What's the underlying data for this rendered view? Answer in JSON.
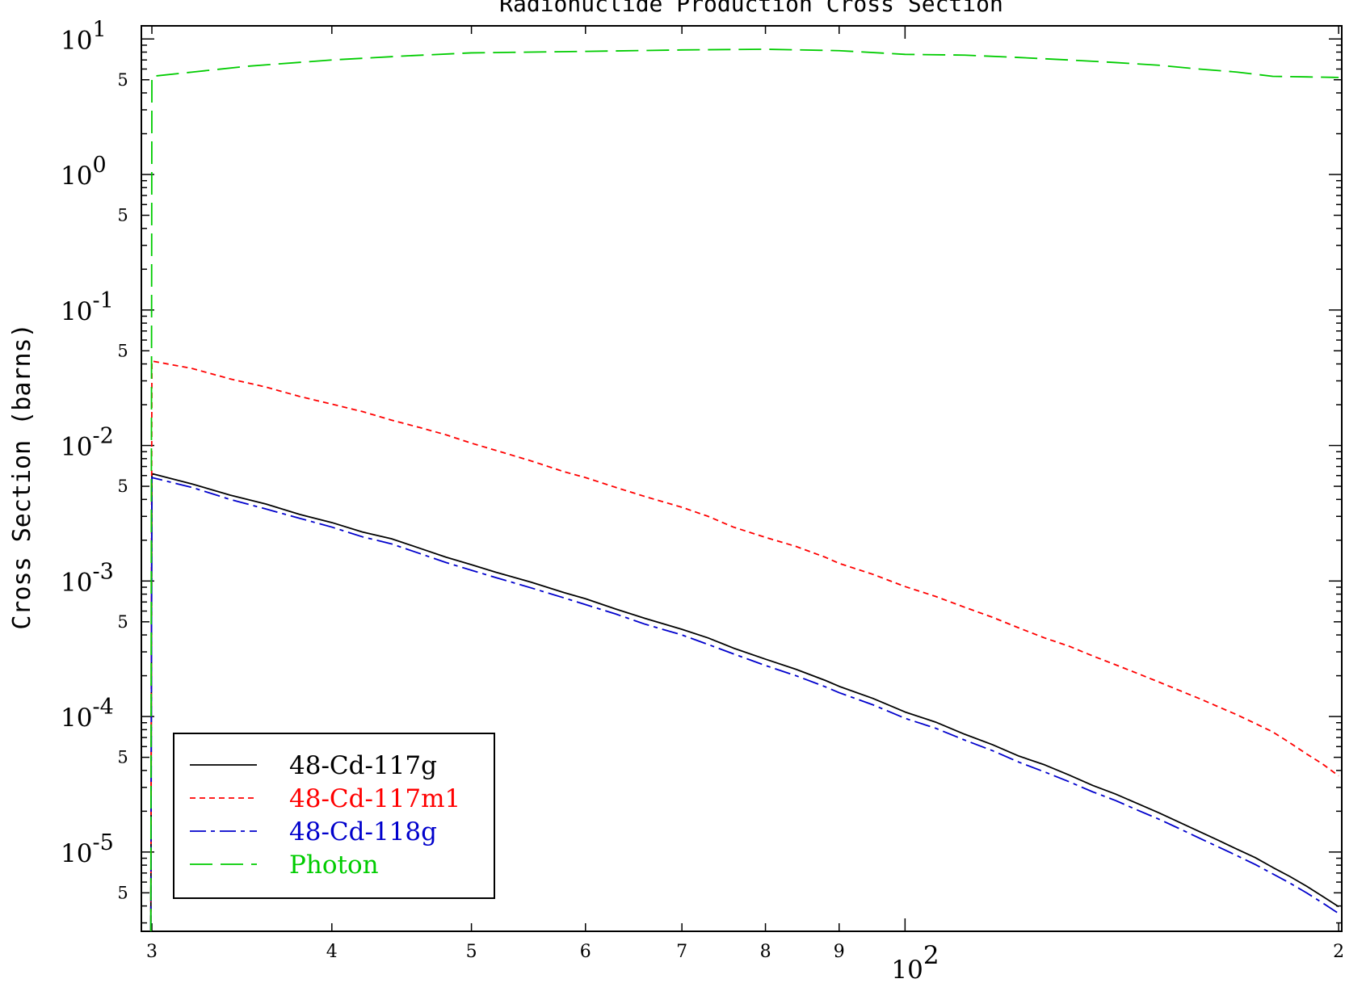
{
  "chart_data": {
    "type": "line",
    "title": "Radionuclide Production Cross Section",
    "ylabel": "Cross Section (barns)",
    "xlabel": "",
    "x_scale": "log",
    "y_scale": "log",
    "xlim": [
      29.5,
      201
    ],
    "ylim": [
      2.6e-06,
      12.5
    ],
    "grid": false,
    "legend_position": "bottom-left",
    "x_ticks": [
      {
        "value": 30,
        "label": "3"
      },
      {
        "value": 40,
        "label": "4"
      },
      {
        "value": 50,
        "label": "5"
      },
      {
        "value": 60,
        "label": "6"
      },
      {
        "value": 70,
        "label": "7"
      },
      {
        "value": 80,
        "label": "8"
      },
      {
        "value": 90,
        "label": "9"
      },
      {
        "value": 200,
        "label": "2"
      }
    ],
    "x_decade_labels": [
      {
        "value": 100,
        "base": "10",
        "exp": "2"
      }
    ],
    "y_decade_labels": [
      {
        "value": 10,
        "base": "10",
        "exp": "1"
      },
      {
        "value": 1,
        "base": "10",
        "exp": "0"
      },
      {
        "value": 0.1,
        "base": "10",
        "exp": "-1"
      },
      {
        "value": 0.01,
        "base": "10",
        "exp": "-2"
      },
      {
        "value": 0.001,
        "base": "10",
        "exp": "-3"
      },
      {
        "value": 0.0001,
        "base": "10",
        "exp": "-4"
      },
      {
        "value": 1e-05,
        "base": "10",
        "exp": "-5"
      }
    ],
    "y_minor_labels": [
      {
        "value": 5,
        "label": "5"
      },
      {
        "value": 0.5,
        "label": "5"
      },
      {
        "value": 0.05,
        "label": "5"
      },
      {
        "value": 0.005,
        "label": "5"
      },
      {
        "value": 0.0005,
        "label": "5"
      },
      {
        "value": 5e-05,
        "label": "5"
      },
      {
        "value": 5e-06,
        "label": "5"
      }
    ],
    "series": [
      {
        "name": "48-Cd-117g",
        "color": "#000000",
        "dash": "solid",
        "points": [
          [
            29.95,
            2.6e-06
          ],
          [
            30,
            0.0062
          ],
          [
            32,
            0.0052
          ],
          [
            34,
            0.0043
          ],
          [
            36,
            0.0037
          ],
          [
            38,
            0.0031
          ],
          [
            40,
            0.0027
          ],
          [
            42,
            0.0023
          ],
          [
            44,
            0.00205
          ],
          [
            46,
            0.00175
          ],
          [
            48,
            0.0015
          ],
          [
            50,
            0.00132
          ],
          [
            52,
            0.00116
          ],
          [
            55,
            0.00098
          ],
          [
            58,
            0.00082
          ],
          [
            60,
            0.00074
          ],
          [
            63,
            0.00062
          ],
          [
            66,
            0.00053
          ],
          [
            70,
            0.00044
          ],
          [
            73,
            0.00038
          ],
          [
            76,
            0.00032
          ],
          [
            80,
            0.000265
          ],
          [
            84,
            0.000223
          ],
          [
            88,
            0.000185
          ],
          [
            90,
            0.000167
          ],
          [
            95,
            0.000136
          ],
          [
            100,
            0.000108
          ],
          [
            105,
            9.1e-05
          ],
          [
            110,
            7.4e-05
          ],
          [
            115,
            6.2e-05
          ],
          [
            120,
            5.1e-05
          ],
          [
            125,
            4.4e-05
          ],
          [
            130,
            3.7e-05
          ],
          [
            135,
            3.1e-05
          ],
          [
            140,
            2.68e-05
          ],
          [
            145,
            2.28e-05
          ],
          [
            150,
            1.95e-05
          ],
          [
            155,
            1.66e-05
          ],
          [
            160,
            1.42e-05
          ],
          [
            165,
            1.22e-05
          ],
          [
            170,
            1.05e-05
          ],
          [
            175,
            9.1e-06
          ],
          [
            180,
            7.7e-06
          ],
          [
            185,
            6.6e-06
          ],
          [
            190,
            5.6e-06
          ],
          [
            195,
            4.7e-06
          ],
          [
            200,
            3.95e-06
          ]
        ]
      },
      {
        "name": "48-Cd-117m1",
        "color": "#ff0000",
        "dash": "short-dash",
        "points": [
          [
            29.95,
            2.6e-06
          ],
          [
            30,
            0.042
          ],
          [
            32,
            0.037
          ],
          [
            34,
            0.031
          ],
          [
            36,
            0.027
          ],
          [
            38,
            0.023
          ],
          [
            40,
            0.0202
          ],
          [
            42,
            0.0178
          ],
          [
            44,
            0.0154
          ],
          [
            46,
            0.0136
          ],
          [
            48,
            0.012
          ],
          [
            50,
            0.0104
          ],
          [
            52,
            0.0092
          ],
          [
            55,
            0.0077
          ],
          [
            58,
            0.0064
          ],
          [
            60,
            0.0058
          ],
          [
            63,
            0.0049
          ],
          [
            66,
            0.0042
          ],
          [
            70,
            0.0035
          ],
          [
            73,
            0.003
          ],
          [
            76,
            0.0025
          ],
          [
            80,
            0.0021
          ],
          [
            84,
            0.0018
          ],
          [
            88,
            0.0015
          ],
          [
            90,
            0.00135
          ],
          [
            95,
            0.00112
          ],
          [
            100,
            0.00091
          ],
          [
            105,
            0.00077
          ],
          [
            110,
            0.00064
          ],
          [
            115,
            0.00054
          ],
          [
            120,
            0.00045
          ],
          [
            125,
            0.00038
          ],
          [
            130,
            0.00033
          ],
          [
            135,
            0.00028
          ],
          [
            140,
            0.000241
          ],
          [
            145,
            0.000208
          ],
          [
            150,
            0.00018
          ],
          [
            155,
            0.000156
          ],
          [
            160,
            0.000136
          ],
          [
            165,
            0.000118
          ],
          [
            170,
            0.000103
          ],
          [
            175,
            8.9e-05
          ],
          [
            180,
            7.7e-05
          ],
          [
            185,
            6.4e-05
          ],
          [
            190,
            5.3e-05
          ],
          [
            195,
            4.45e-05
          ],
          [
            200,
            3.65e-05
          ]
        ]
      },
      {
        "name": "48-Cd-118g",
        "color": "#0000cc",
        "dash": "dash-dot",
        "points": [
          [
            29.95,
            2.6e-06
          ],
          [
            30,
            0.0058
          ],
          [
            32,
            0.0049
          ],
          [
            34,
            0.004
          ],
          [
            36,
            0.0034
          ],
          [
            38,
            0.0029
          ],
          [
            40,
            0.0025
          ],
          [
            42,
            0.00212
          ],
          [
            44,
            0.00188
          ],
          [
            46,
            0.0016
          ],
          [
            48,
            0.00137
          ],
          [
            50,
            0.0012
          ],
          [
            52,
            0.00106
          ],
          [
            55,
            0.00089
          ],
          [
            58,
            0.00075
          ],
          [
            60,
            0.00067
          ],
          [
            63,
            0.00057
          ],
          [
            66,
            0.00048
          ],
          [
            70,
            0.0004
          ],
          [
            73,
            0.00034
          ],
          [
            76,
            0.00029
          ],
          [
            80,
            0.000238
          ],
          [
            84,
            0.0002
          ],
          [
            88,
            0.000166
          ],
          [
            90,
            0.00015
          ],
          [
            95,
            0.000122
          ],
          [
            100,
            9.7e-05
          ],
          [
            105,
            8.2e-05
          ],
          [
            110,
            6.7e-05
          ],
          [
            115,
            5.6e-05
          ],
          [
            120,
            4.6e-05
          ],
          [
            125,
            3.9e-05
          ],
          [
            130,
            3.3e-05
          ],
          [
            135,
            2.78e-05
          ],
          [
            140,
            2.4e-05
          ],
          [
            145,
            2.04e-05
          ],
          [
            150,
            1.75e-05
          ],
          [
            155,
            1.49e-05
          ],
          [
            160,
            1.27e-05
          ],
          [
            165,
            1.09e-05
          ],
          [
            170,
            9.4e-06
          ],
          [
            175,
            8.1e-06
          ],
          [
            180,
            6.9e-06
          ],
          [
            185,
            5.9e-06
          ],
          [
            190,
            5e-06
          ],
          [
            195,
            4.2e-06
          ],
          [
            200,
            3.52e-06
          ]
        ]
      },
      {
        "name": "Photon",
        "color": "#00cc00",
        "dash": "long-dash",
        "points": [
          [
            29.95,
            2.6e-06
          ],
          [
            30,
            5.3
          ],
          [
            32,
            5.7
          ],
          [
            35,
            6.3
          ],
          [
            40,
            7.0
          ],
          [
            45,
            7.5
          ],
          [
            50,
            7.9
          ],
          [
            55,
            8.0
          ],
          [
            60,
            8.1
          ],
          [
            70,
            8.3
          ],
          [
            80,
            8.4
          ],
          [
            90,
            8.2
          ],
          [
            100,
            7.7
          ],
          [
            110,
            7.6
          ],
          [
            120,
            7.3
          ],
          [
            130,
            7.0
          ],
          [
            140,
            6.7
          ],
          [
            150,
            6.4
          ],
          [
            160,
            6.0
          ],
          [
            170,
            5.7
          ],
          [
            180,
            5.3
          ],
          [
            190,
            5.25
          ],
          [
            200,
            5.2
          ]
        ]
      }
    ]
  }
}
